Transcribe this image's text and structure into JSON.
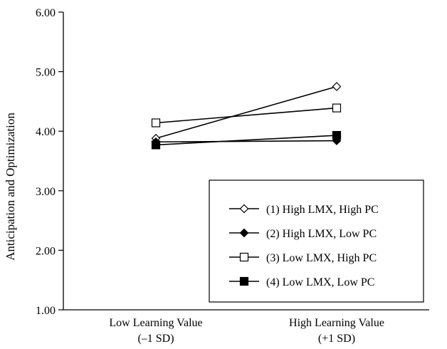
{
  "chart_data": {
    "type": "line",
    "title": "",
    "xlabel": "",
    "ylabel": "Anticipation and Optimization",
    "ylim": [
      1.0,
      6.0
    ],
    "yticks": [
      "1.00",
      "2.00",
      "3.00",
      "4.00",
      "5.00",
      "6.00"
    ],
    "categories": [
      [
        "Low Learning Value",
        "(–1 SD)"
      ],
      [
        "High Learning Value",
        "(+1 SD)"
      ]
    ],
    "grid": false,
    "legend_position": "bottom-right",
    "series": [
      {
        "name": "(1) High LMX, High PC",
        "values": [
          3.88,
          4.75
        ],
        "marker": "diamond-open",
        "color": "#000000"
      },
      {
        "name": "(2) High LMX, Low PC",
        "values": [
          3.82,
          3.84
        ],
        "marker": "diamond-filled",
        "color": "#000000"
      },
      {
        "name": "(3) Low LMX, High PC",
        "values": [
          4.14,
          4.39
        ],
        "marker": "square-open",
        "color": "#000000"
      },
      {
        "name": "(4) Low LMX, Low PC",
        "values": [
          3.77,
          3.93
        ],
        "marker": "square-filled",
        "color": "#000000"
      }
    ]
  }
}
